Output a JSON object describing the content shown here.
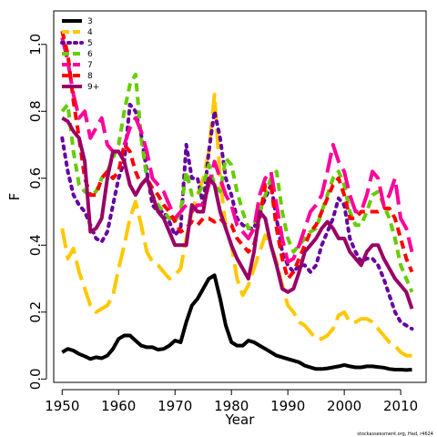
{
  "chart_data": {
    "type": "line",
    "xlabel": "Year",
    "ylabel": "F",
    "xlim": [
      1948.5,
      2014.5
    ],
    "ylim": [
      -0.01,
      1.1
    ],
    "x_ticks": [
      1950,
      1960,
      1970,
      1980,
      1990,
      2000,
      2010
    ],
    "y_ticks": [
      0.0,
      0.2,
      0.4,
      0.6,
      0.8,
      1.0
    ],
    "y_tick_labels": [
      "0.0",
      "0.2",
      "0.4",
      "0.6",
      "0.8",
      "1.0"
    ],
    "legend_position": "top-left",
    "credit": "stockassessment.org, Had, r4624",
    "x": [
      1950,
      1951,
      1952,
      1953,
      1954,
      1955,
      1956,
      1957,
      1958,
      1959,
      1960,
      1961,
      1962,
      1963,
      1964,
      1965,
      1966,
      1967,
      1968,
      1969,
      1970,
      1971,
      1972,
      1973,
      1974,
      1975,
      1976,
      1977,
      1978,
      1979,
      1980,
      1981,
      1982,
      1983,
      1984,
      1985,
      1986,
      1987,
      1988,
      1989,
      1990,
      1991,
      1992,
      1993,
      1994,
      1995,
      1996,
      1997,
      1998,
      1999,
      2000,
      2001,
      2002,
      2003,
      2004,
      2005,
      2006,
      2007,
      2008,
      2009,
      2010,
      2011,
      2012
    ],
    "series": [
      {
        "name": "3",
        "color": "#000000",
        "dash": "solid",
        "width": 4,
        "values": [
          0.08,
          0.09,
          0.085,
          0.075,
          0.068,
          0.06,
          0.065,
          0.062,
          0.07,
          0.09,
          0.12,
          0.13,
          0.13,
          0.115,
          0.1,
          0.095,
          0.095,
          0.088,
          0.09,
          0.1,
          0.115,
          0.11,
          0.17,
          0.22,
          0.24,
          0.27,
          0.3,
          0.31,
          0.24,
          0.16,
          0.11,
          0.1,
          0.1,
          0.115,
          0.11,
          0.1,
          0.09,
          0.08,
          0.07,
          0.065,
          0.06,
          0.055,
          0.05,
          0.04,
          0.035,
          0.03,
          0.03,
          0.032,
          0.035,
          0.038,
          0.042,
          0.038,
          0.035,
          0.035,
          0.038,
          0.038,
          0.036,
          0.034,
          0.03,
          0.028,
          0.028,
          0.027,
          0.028
        ]
      },
      {
        "name": "4",
        "color": "#ffc800",
        "dash": "long",
        "width": 4,
        "values": [
          0.45,
          0.36,
          0.39,
          0.32,
          0.27,
          0.22,
          0.2,
          0.21,
          0.22,
          0.25,
          0.33,
          0.4,
          0.48,
          0.53,
          0.46,
          0.38,
          0.35,
          0.34,
          0.32,
          0.3,
          0.31,
          0.33,
          0.42,
          0.5,
          0.55,
          0.6,
          0.68,
          0.85,
          0.6,
          0.45,
          0.4,
          0.3,
          0.25,
          0.28,
          0.33,
          0.38,
          0.43,
          0.4,
          0.35,
          0.28,
          0.22,
          0.2,
          0.17,
          0.16,
          0.14,
          0.12,
          0.12,
          0.13,
          0.15,
          0.19,
          0.2,
          0.17,
          0.17,
          0.18,
          0.18,
          0.17,
          0.15,
          0.13,
          0.11,
          0.1,
          0.08,
          0.07,
          0.07
        ]
      },
      {
        "name": "5",
        "color": "#6600a0",
        "dash": "dotted",
        "width": 4,
        "values": [
          0.72,
          0.62,
          0.55,
          0.52,
          0.5,
          0.46,
          0.42,
          0.41,
          0.44,
          0.52,
          0.6,
          0.65,
          0.82,
          0.8,
          0.73,
          0.62,
          0.52,
          0.5,
          0.5,
          0.47,
          0.43,
          0.45,
          0.7,
          0.6,
          0.6,
          0.52,
          0.68,
          0.8,
          0.72,
          0.6,
          0.55,
          0.48,
          0.46,
          0.45,
          0.45,
          0.5,
          0.54,
          0.58,
          0.48,
          0.38,
          0.34,
          0.32,
          0.34,
          0.34,
          0.32,
          0.34,
          0.4,
          0.44,
          0.48,
          0.54,
          0.52,
          0.42,
          0.38,
          0.35,
          0.36,
          0.36,
          0.34,
          0.3,
          0.25,
          0.2,
          0.17,
          0.16,
          0.15
        ]
      },
      {
        "name": "6",
        "color": "#66cc00",
        "dash": "dashed",
        "width": 4,
        "values": [
          0.8,
          0.82,
          0.68,
          0.58,
          0.56,
          0.55,
          0.56,
          0.6,
          0.62,
          0.66,
          0.7,
          0.8,
          0.88,
          0.91,
          0.72,
          0.6,
          0.55,
          0.52,
          0.5,
          0.48,
          0.47,
          0.5,
          0.62,
          0.55,
          0.55,
          0.58,
          0.64,
          0.58,
          0.56,
          0.66,
          0.64,
          0.56,
          0.5,
          0.45,
          0.46,
          0.5,
          0.55,
          0.6,
          0.62,
          0.5,
          0.42,
          0.38,
          0.4,
          0.42,
          0.44,
          0.45,
          0.5,
          0.55,
          0.6,
          0.62,
          0.58,
          0.5,
          0.46,
          0.46,
          0.5,
          0.55,
          0.56,
          0.52,
          0.48,
          0.42,
          0.34,
          0.3,
          0.26
        ]
      },
      {
        "name": "7",
        "color": "#ff0099",
        "dash": "long",
        "width": 4,
        "values": [
          1.02,
          0.95,
          0.85,
          0.78,
          0.8,
          0.72,
          0.75,
          0.78,
          0.7,
          0.68,
          0.68,
          0.7,
          0.75,
          0.78,
          0.74,
          0.68,
          0.6,
          0.58,
          0.56,
          0.52,
          0.48,
          0.5,
          0.52,
          0.5,
          0.52,
          0.52,
          0.58,
          0.65,
          0.6,
          0.55,
          0.52,
          0.46,
          0.44,
          0.42,
          0.45,
          0.55,
          0.6,
          0.62,
          0.52,
          0.42,
          0.35,
          0.36,
          0.4,
          0.45,
          0.5,
          0.52,
          0.55,
          0.62,
          0.7,
          0.65,
          0.62,
          0.55,
          0.5,
          0.5,
          0.55,
          0.62,
          0.6,
          0.52,
          0.55,
          0.6,
          0.48,
          0.45,
          0.38
        ]
      },
      {
        "name": "8",
        "color": "#ff0000",
        "dash": "dashed",
        "width": 4,
        "values": [
          1.04,
          0.97,
          0.83,
          0.72,
          0.6,
          0.55,
          0.55,
          0.6,
          0.62,
          0.6,
          0.62,
          0.7,
          0.68,
          0.62,
          0.58,
          0.6,
          0.57,
          0.55,
          0.52,
          0.5,
          0.47,
          0.44,
          0.45,
          0.47,
          0.46,
          0.48,
          0.48,
          0.47,
          0.48,
          0.46,
          0.46,
          0.42,
          0.4,
          0.38,
          0.4,
          0.48,
          0.58,
          0.58,
          0.45,
          0.36,
          0.3,
          0.32,
          0.36,
          0.4,
          0.44,
          0.46,
          0.5,
          0.54,
          0.58,
          0.6,
          0.55,
          0.48,
          0.48,
          0.5,
          0.5,
          0.5,
          0.5,
          0.51,
          0.51,
          0.48,
          0.42,
          0.36,
          0.32
        ]
      },
      {
        "name": "9+",
        "color": "#990066",
        "dash": "solid",
        "width": 4,
        "values": [
          0.78,
          0.77,
          0.74,
          0.72,
          0.65,
          0.44,
          0.45,
          0.48,
          0.6,
          0.68,
          0.68,
          0.65,
          0.58,
          0.55,
          0.58,
          0.6,
          0.55,
          0.5,
          0.48,
          0.44,
          0.4,
          0.4,
          0.4,
          0.52,
          0.5,
          0.5,
          0.6,
          0.58,
          0.5,
          0.45,
          0.4,
          0.36,
          0.33,
          0.3,
          0.38,
          0.5,
          0.48,
          0.4,
          0.34,
          0.27,
          0.26,
          0.27,
          0.32,
          0.38,
          0.4,
          0.42,
          0.45,
          0.47,
          0.45,
          0.42,
          0.42,
          0.38,
          0.36,
          0.34,
          0.38,
          0.4,
          0.4,
          0.36,
          0.33,
          0.3,
          0.28,
          0.26,
          0.21
        ]
      }
    ]
  }
}
